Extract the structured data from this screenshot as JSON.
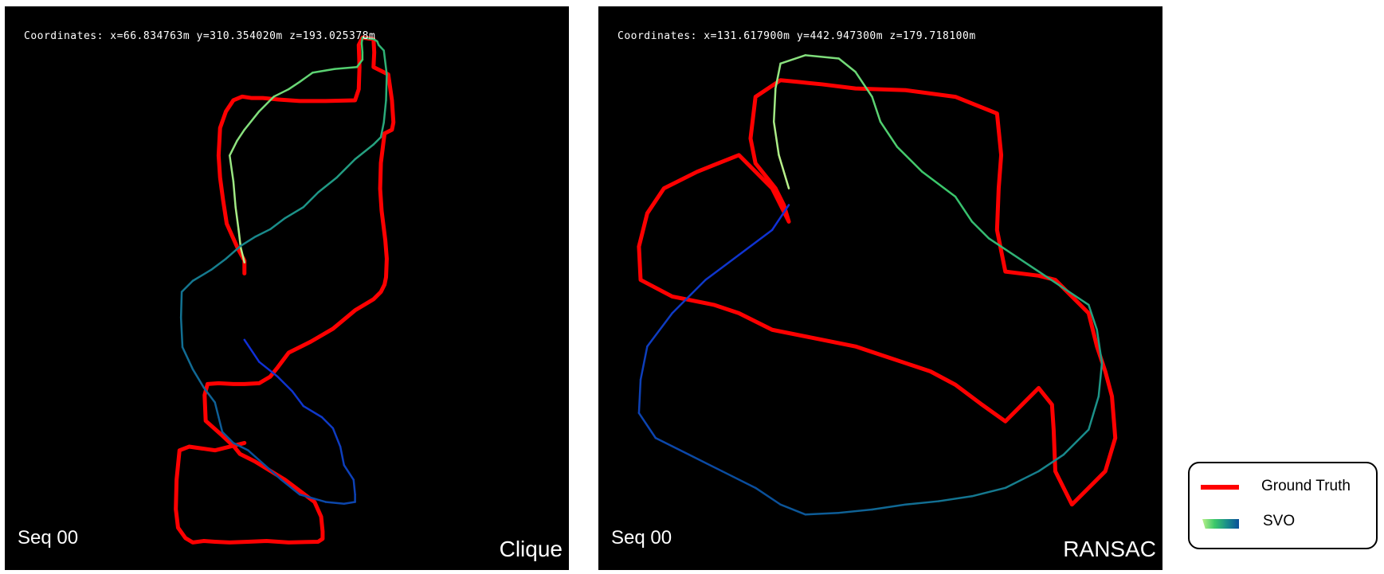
{
  "chart_data": [
    {
      "type": "line",
      "panel_label": "Seq 00",
      "method_label": "Clique",
      "coordinates_text": "Coordinates: x=66.834763m y=310.354020m z=193.025378m",
      "series": [
        {
          "name": "Ground Truth",
          "color": "#ff0000",
          "x": [
            0,
            0,
            -18,
            -48,
            -58,
            -66,
            -70,
            -66,
            -50,
            -30,
            -6,
            20,
            50,
            92,
            150,
            220,
            300,
            310,
            312,
            310,
            320,
            350,
            352,
            350,
            390,
            400,
            404,
            400,
            380,
            370,
            368,
            372,
            382,
            386,
            384,
            380,
            370,
            350,
            300,
            240,
            180,
            120,
            90,
            70,
            40,
            0,
            -30,
            -70,
            -100,
            -108,
            -105,
            -60,
            -28,
            -12,
            28,
            110,
            190,
            208,
            212,
            212,
            200,
            120,
            60,
            10,
            -40,
            -80,
            -110,
            -140,
            -160,
            -180,
            -186,
            -184,
            -176,
            -150,
            -80,
            0
          ],
          "y": [
            0,
            -35,
            -68,
            -135,
            -200,
            -260,
            -320,
            -395,
            -440,
            -470,
            -480,
            -476,
            -476,
            -472,
            -468,
            -468,
            -470,
            -500,
            -560,
            -620,
            -640,
            -636,
            -600,
            -560,
            -540,
            -470,
            -410,
            -390,
            -380,
            -300,
            -230,
            -170,
            -90,
            -40,
            10,
            30,
            50,
            70,
            100,
            150,
            185,
            215,
            255,
            280,
            298,
            300,
            300,
            298,
            300,
            330,
            400,
            440,
            470,
            490,
            510,
            560,
            620,
            660,
            700,
            720,
            728,
            730,
            726,
            728,
            730,
            728,
            726,
            730,
            718,
            690,
            640,
            560,
            480,
            470,
            480,
            460
          ]
        },
        {
          "name": "SVO",
          "color_start": "#b8f08a",
          "color_end": "#0a4f9a",
          "x": [
            0,
            -10,
            -16,
            -24,
            -30,
            -40,
            -20,
            0,
            40,
            80,
            120,
            150,
            185,
            245,
            305,
            320,
            320,
            318,
            320,
            350,
            360,
            364,
            378,
            386,
            384,
            378,
            370,
            350,
            300,
            250,
            200,
            160,
            110,
            70,
            30,
            -10,
            -50,
            -90,
            -140,
            -170,
            -172,
            -168,
            -140,
            -110,
            -80,
            -70,
            -60,
            -30,
            10,
            55,
            100,
            150,
            220,
            270,
            300,
            300,
            296,
            270,
            260,
            240,
            210,
            160,
            130,
            90,
            40,
            0
          ],
          "y": [
            -30,
            -70,
            -120,
            -180,
            -250,
            -320,
            -360,
            -390,
            -440,
            -480,
            -500,
            -520,
            -545,
            -555,
            -560,
            -580,
            -600,
            -625,
            -640,
            -636,
            -630,
            -620,
            -605,
            -540,
            -470,
            -410,
            -370,
            -350,
            -310,
            -260,
            -220,
            -180,
            -150,
            -120,
            -100,
            -75,
            -40,
            -10,
            20,
            50,
            120,
            200,
            260,
            310,
            350,
            390,
            430,
            460,
            480,
            520,
            560,
            600,
            620,
            625,
            620,
            600,
            560,
            520,
            470,
            420,
            390,
            360,
            320,
            280,
            240,
            180
          ]
        }
      ],
      "x_range": [
        -190,
        420
      ],
      "y_range": [
        -660,
        740
      ],
      "grid": false,
      "legend_position": "outside-bottom-right"
    },
    {
      "type": "line",
      "panel_label": "Seq 00",
      "method_label": "RANSAC",
      "coordinates_text": "Coordinates: x=131.617900m y=442.947300m z=179.718100m",
      "series": [
        {
          "name": "Ground Truth",
          "color": "#ff0000",
          "x": [
            0,
            -6,
            -16,
            -40,
            -46,
            -40,
            -10,
            10,
            40,
            80,
            140,
            200,
            250,
            255,
            252,
            250,
            260,
            300,
            320,
            340,
            360,
            370,
            380,
            388,
            392,
            380,
            360,
            340,
            320,
            318,
            316,
            300,
            280,
            260,
            232,
            200,
            170,
            140,
            110,
            80,
            30,
            -20,
            -60,
            -90,
            -140,
            -178,
            -180,
            -170,
            -150,
            -110,
            -60,
            -20,
            0
          ],
          "y": [
            0,
            -20,
            -40,
            -70,
            -100,
            -150,
            -170,
            -168,
            -165,
            -160,
            -158,
            -150,
            -130,
            -80,
            -40,
            10,
            60,
            65,
            70,
            90,
            110,
            150,
            180,
            210,
            260,
            300,
            320,
            340,
            300,
            250,
            220,
            200,
            220,
            240,
            220,
            196,
            180,
            170,
            160,
            150,
            140,
            130,
            110,
            100,
            90,
            70,
            30,
            -10,
            -40,
            -60,
            -80,
            -40,
            0
          ]
        },
        {
          "name": "SVO",
          "color_start": "#b8f08a",
          "color_end": "#0a4f9a",
          "x": [
            0,
            -12,
            -18,
            -16,
            -10,
            20,
            60,
            80,
            100,
            110,
            130,
            160,
            200,
            220,
            240,
            270,
            300,
            330,
            360,
            370,
            376,
            372,
            360,
            330,
            300,
            260,
            220,
            180,
            140,
            100,
            60,
            20,
            -10,
            -40,
            -80,
            -120,
            -160,
            -180,
            -178,
            -170,
            -140,
            -100,
            -60,
            -20,
            0
          ],
          "y": [
            -40,
            -80,
            -120,
            -160,
            -190,
            -200,
            -196,
            -180,
            -150,
            -120,
            -90,
            -60,
            -30,
            0,
            20,
            40,
            60,
            80,
            100,
            130,
            170,
            210,
            250,
            280,
            300,
            320,
            330,
            336,
            340,
            346,
            350,
            352,
            340,
            320,
            300,
            280,
            260,
            230,
            190,
            150,
            110,
            70,
            40,
            10,
            -20
          ]
        }
      ],
      "x_range": [
        -200,
        420
      ],
      "y_range": [
        -220,
        380
      ],
      "grid": false,
      "legend_position": "outside-bottom-right"
    }
  ],
  "legend": {
    "ground_truth_label": "Ground Truth",
    "svo_label": "SVO",
    "ground_truth_color": "#ff0000"
  },
  "colors": {
    "background": "#000000",
    "ground_truth": "#ff0000",
    "svo_gradient": [
      "#b8f08a",
      "#3cc86a",
      "#1a8e8a",
      "#0a4f9a",
      "#1030d8"
    ]
  }
}
